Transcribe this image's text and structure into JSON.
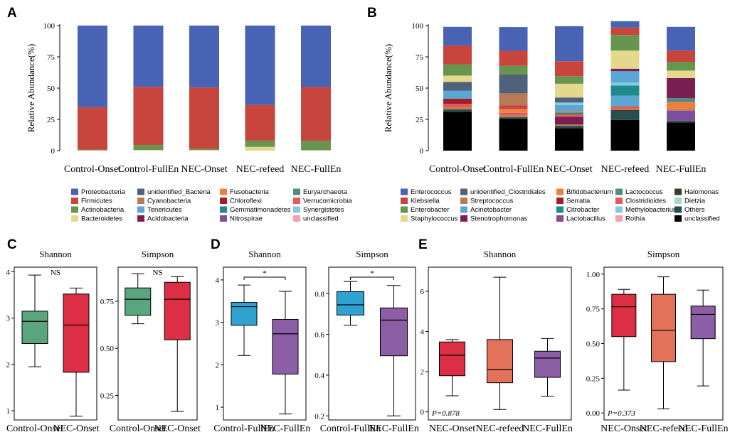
{
  "colors": {
    "Proteobacteria": "#4862b4",
    "Firmicutes": "#c7453d",
    "Actinobacteria": "#67944e",
    "Bacteroidetes": "#e4d98a",
    "unidentified_Bacteria": "#50627a",
    "Cyanobacteria": "#b87a54",
    "Tenericutes": "#5ba7d4",
    "Acidobacteria": "#7a1e55",
    "Fusobacteria": "#f07e3c",
    "Chloroflexi": "#a51d2a",
    "Gemmatimonadetes": "#1f8a8a",
    "Nitrospirae": "#7c4ea0",
    "Euryarchaeota": "#4e8b83",
    "Verrucomicrobia": "#e25a5a",
    "Synergistetes": "#86c9e3",
    "unclassified": "#f4a0b0",
    "Enterococcus": "#4862b4",
    "Klebsiella": "#c7453d",
    "Enterobacter": "#67944e",
    "Staphylococcus": "#e4d98a",
    "unidentified_Clostridiales": "#50627a",
    "Streptococcus": "#b87a54",
    "Acinetobacter": "#5ba7d4",
    "Stenotrophomonas": "#7a1e55",
    "Bifidobacterium": "#f07e3c",
    "Serratia": "#a51d2a",
    "Citrobacter": "#1f8a8a",
    "Lactobacillus": "#7c4ea0",
    "Lactococcus": "#4e8b83",
    "Clostridioides": "#e25a5a",
    "Methylobacterium": "#86c9e3",
    "Rothia": "#f4a0b0",
    "Halomonas": "#3d3a24",
    "Dietzia": "#a8d8c4",
    "Others": "#264e4e",
    "unclassified_B": "#000000",
    "shannon_onset": "#5aa57e",
    "nec_red": "#dc2f45",
    "fullen_blue": "#2ea3d2",
    "purple": "#8c5ea6",
    "salmon": "#e2725a"
  },
  "chart_data": [
    {
      "id": "A",
      "type": "bar",
      "stacked": true,
      "title": "",
      "xlabel": "",
      "ylabel": "Relative Abundance(%)",
      "ylim": [
        0,
        100
      ],
      "yticks": [
        "0",
        "25",
        "50",
        "75",
        "100"
      ],
      "categories": [
        "Control-Onset",
        "Control-FullEn",
        "NEC-Onset",
        "NEC-refeed",
        "NEC-FullEn"
      ],
      "series": [
        {
          "name": "Bacteroidetes",
          "values": [
            0.3,
            0.5,
            0.5,
            3,
            0.4
          ]
        },
        {
          "name": "Actinobacteria",
          "values": [
            0.5,
            4,
            1,
            5,
            7.5
          ]
        },
        {
          "name": "Firmicutes",
          "values": [
            34,
            46.5,
            49,
            28.5,
            43
          ]
        },
        {
          "name": "Proteobacteria",
          "values": [
            65.2,
            49,
            49.5,
            63.5,
            49.1
          ]
        }
      ],
      "legend": [
        "Proteobacteria",
        "Firmicutes",
        "Actinobacteria",
        "Bacteroidetes",
        "unidentified_Bacteria",
        "Cyanobacteria",
        "Tenericutes",
        "Acidobacteria",
        "Fusobacteria",
        "Chloroflexi",
        "Gemmatimonadetes",
        "Nitrospirae",
        "Euryarchaeota",
        "Verrucomicrobia",
        "Synergistetes",
        "unclassified"
      ]
    },
    {
      "id": "B",
      "type": "bar",
      "stacked": true,
      "title": "",
      "xlabel": "",
      "ylabel": "Relative Abundance(%)",
      "ylim": [
        0,
        100
      ],
      "yticks": [
        "0",
        "25",
        "50",
        "75",
        "100"
      ],
      "categories": [
        "Control-Onset",
        "Control-FullEn",
        "NEC-Onset",
        "NEC-refeed",
        "NEC-FullEn"
      ],
      "series": [
        {
          "name": "unclassified_B",
          "label": "unclassified",
          "values": [
            31,
            25.5,
            18,
            24.5,
            22.5
          ]
        },
        {
          "name": "Others",
          "values": [
            1.5,
            1,
            1.5,
            7,
            1
          ]
        },
        {
          "name": "Halomonas",
          "values": [
            0.5,
            0.3,
            0.5,
            1,
            0.5
          ]
        },
        {
          "name": "Lactobacillus",
          "values": [
            0,
            0,
            0,
            0,
            8
          ]
        },
        {
          "name": "Streptococcus",
          "values": [
            1.5,
            1.5,
            1,
            1,
            1
          ]
        },
        {
          "name": "Stenotrophomonas",
          "values": [
            0,
            0,
            6,
            0,
            0
          ]
        },
        {
          "name": "Clostridioides",
          "values": [
            3,
            2,
            2,
            2,
            0
          ]
        },
        {
          "name": "Citrobacter",
          "values": [
            0,
            0,
            1.5,
            0,
            0
          ]
        },
        {
          "name": "Bifidobacterium",
          "values": [
            0,
            3,
            1,
            0,
            6
          ]
        },
        {
          "name": "Klebsiella",
          "values": [
            0,
            3,
            0,
            0,
            0
          ]
        },
        {
          "name": "Acinetobacter",
          "values": [
            0,
            0,
            5,
            0,
            0
          ]
        },
        {
          "name": "Streptococcus",
          "values": [
            0,
            9.5,
            0,
            0,
            0
          ]
        },
        {
          "name": "Acinetobacter",
          "values": [
            0,
            0,
            0,
            8.5,
            0
          ]
        },
        {
          "name": "Lactococcus",
          "values": [
            0,
            0,
            0,
            0,
            3
          ]
        },
        {
          "name": "Citrobacter",
          "values": [
            0,
            0,
            0,
            8,
            0
          ]
        },
        {
          "name": "Stenotrophomonas",
          "values": [
            0,
            0,
            0,
            0,
            10
          ]
        },
        {
          "name": "Serratia",
          "values": [
            4,
            0,
            0,
            0,
            0
          ]
        },
        {
          "name": "Methylobacterium",
          "values": [
            0,
            0,
            2,
            2.5,
            0
          ]
        },
        {
          "name": "Acinetobacter",
          "values": [
            6.5,
            0,
            0,
            9,
            0
          ]
        },
        {
          "name": "unidentified_Clostridiales",
          "values": [
            7,
            15,
            4,
            0,
            0
          ]
        },
        {
          "name": "Stenotrophomonas",
          "values": [
            0,
            0,
            0,
            2,
            6
          ]
        },
        {
          "name": "Staphylococcus",
          "values": [
            5,
            0,
            11,
            14.5,
            6
          ]
        },
        {
          "name": "Enterobacter",
          "values": [
            9,
            7,
            6,
            12.5,
            7
          ]
        },
        {
          "name": "Klebsiella",
          "values": [
            15,
            12,
            12,
            6,
            9
          ]
        },
        {
          "name": "Enterococcus",
          "values": [
            15,
            19,
            28,
            5,
            19
          ]
        }
      ],
      "legend": [
        "Enterococcus",
        "Klebsiella",
        "Enterobacter",
        "Staphylococcus",
        "unidentified_Clostridiales",
        "Streptococcus",
        "Acinetobacter",
        "Stenotrophomonas",
        "Bifidobacterium",
        "Serratia",
        "Citrobacter",
        "Lactobacillus",
        "Lactococcus",
        "Clostridioides",
        "Methylobacterium",
        "Rothia",
        "Halomonas",
        "Dietzia",
        "Others",
        "unclassified"
      ],
      "legend_keys": [
        "Enterococcus",
        "Klebsiella",
        "Enterobacter",
        "Staphylococcus",
        "unidentified_Clostridiales",
        "Streptococcus",
        "Acinetobacter",
        "Stenotrophomonas",
        "Bifidobacterium",
        "Serratia",
        "Citrobacter",
        "Lactobacillus",
        "Lactococcus",
        "Clostridioides",
        "Methylobacterium",
        "Rothia",
        "Halomonas",
        "Dietzia",
        "Others",
        "unclassified_B"
      ]
    },
    {
      "id": "C-Shannon",
      "panel": "C",
      "type": "box",
      "title": "Shannon",
      "ylim": [
        0.8,
        4.1
      ],
      "yticks": [
        1,
        2,
        3,
        4
      ],
      "ytick_labels": [
        "1",
        "2",
        "3",
        "4"
      ],
      "annotation": "NS",
      "categories": [
        "Control-Onset",
        "NEC-Onset"
      ],
      "boxes": [
        {
          "name": "Control-Onset",
          "min": 1.95,
          "q1": 2.45,
          "median": 2.93,
          "q3": 3.15,
          "max": 3.93,
          "color": "shannon_onset"
        },
        {
          "name": "NEC-Onset",
          "min": 0.88,
          "q1": 1.83,
          "median": 2.85,
          "q3": 3.52,
          "max": 3.65,
          "color": "nec_red"
        }
      ]
    },
    {
      "id": "C-Simpson",
      "panel": "C",
      "type": "box",
      "title": "Simpson",
      "ylim": [
        0.12,
        0.93
      ],
      "yticks": [
        0.25,
        0.5,
        0.75
      ],
      "ytick_labels": [
        "0.25",
        "0.50",
        "0.75"
      ],
      "annotation": "NS",
      "categories": [
        "Control-Onset",
        "NEC-Onset"
      ],
      "boxes": [
        {
          "name": "Control-Onset",
          "min": 0.63,
          "q1": 0.675,
          "median": 0.76,
          "q3": 0.82,
          "max": 0.895,
          "color": "shannon_onset"
        },
        {
          "name": "NEC-Onset",
          "min": 0.165,
          "q1": 0.545,
          "median": 0.76,
          "q3": 0.85,
          "max": 0.88,
          "color": "nec_red"
        }
      ]
    },
    {
      "id": "D-Shannon",
      "panel": "D",
      "type": "box",
      "title": "Shannon",
      "ylim": [
        0.7,
        4.3
      ],
      "yticks": [
        1,
        2,
        3,
        4
      ],
      "ytick_labels": [
        "1",
        "2",
        "3",
        "4"
      ],
      "annotation": "*",
      "categories": [
        "Control-FullEn",
        "NEC-FullEn"
      ],
      "boxes": [
        {
          "name": "Control-FullEn",
          "min": 2.22,
          "q1": 2.93,
          "median": 3.37,
          "q3": 3.47,
          "max": 3.88,
          "color": "fullen_blue"
        },
        {
          "name": "NEC-FullEn",
          "min": 0.84,
          "q1": 1.78,
          "median": 2.73,
          "q3": 3.07,
          "max": 3.73,
          "color": "purple"
        }
      ]
    },
    {
      "id": "D-Simpson",
      "panel": "D",
      "type": "box",
      "title": "Simpson",
      "ylim": [
        0.18,
        0.93
      ],
      "yticks": [
        0.2,
        0.4,
        0.6,
        0.8
      ],
      "ytick_labels": [
        "0.2",
        "0.4",
        "0.6",
        "0.8"
      ],
      "annotation": "*",
      "categories": [
        "Control-FullEn",
        "NEC-FullEn"
      ],
      "boxes": [
        {
          "name": "Control-FullEn",
          "min": 0.645,
          "q1": 0.695,
          "median": 0.745,
          "q3": 0.81,
          "max": 0.86,
          "color": "fullen_blue"
        },
        {
          "name": "NEC-FullEn",
          "min": 0.2,
          "q1": 0.495,
          "median": 0.67,
          "q3": 0.73,
          "max": 0.84,
          "color": "purple"
        }
      ]
    },
    {
      "id": "E-Shannon",
      "panel": "E",
      "type": "box",
      "title": "Shannon",
      "ylim": [
        -0.4,
        7.2
      ],
      "yticks": [
        0,
        2,
        4,
        6
      ],
      "ytick_labels": [
        "0",
        "2",
        "4",
        "6"
      ],
      "annotation": "P=0.878",
      "categories": [
        "NEC-Onset",
        "NEC-refeed",
        "NEC-FullEn"
      ],
      "boxes": [
        {
          "name": "NEC-Onset",
          "min": 0.8,
          "q1": 1.8,
          "median": 2.82,
          "q3": 3.48,
          "max": 3.6,
          "color": "nec_red"
        },
        {
          "name": "NEC-refeed",
          "min": 0.12,
          "q1": 1.45,
          "median": 2.1,
          "q3": 3.6,
          "max": 6.7,
          "color": "salmon"
        },
        {
          "name": "NEC-FullEn",
          "min": 0.78,
          "q1": 1.72,
          "median": 2.68,
          "q3": 3.02,
          "max": 3.65,
          "color": "purple"
        }
      ]
    },
    {
      "id": "E-Simpson",
      "panel": "E",
      "type": "box",
      "title": "Simpson",
      "ylim": [
        -0.05,
        1.05
      ],
      "yticks": [
        0,
        0.25,
        0.5,
        0.75,
        1.0
      ],
      "ytick_labels": [
        "0.00",
        "0.25",
        "0.50",
        "0.75",
        "1.00"
      ],
      "annotation": "P=0.373",
      "categories": [
        "NEC-Onset",
        "NEC-refeed",
        "NEC-FullEn"
      ],
      "boxes": [
        {
          "name": "NEC-Onset",
          "min": 0.165,
          "q1": 0.55,
          "median": 0.765,
          "q3": 0.855,
          "max": 0.89,
          "color": "nec_red"
        },
        {
          "name": "NEC-refeed",
          "min": 0.03,
          "q1": 0.37,
          "median": 0.595,
          "q3": 0.855,
          "max": 0.98,
          "color": "salmon"
        },
        {
          "name": "NEC-FullEn",
          "min": 0.195,
          "q1": 0.535,
          "median": 0.71,
          "q3": 0.77,
          "max": 0.885,
          "color": "purple"
        }
      ]
    }
  ],
  "panel_labels": {
    "A": "A",
    "B": "B",
    "C": "C",
    "D": "D",
    "E": "E"
  }
}
